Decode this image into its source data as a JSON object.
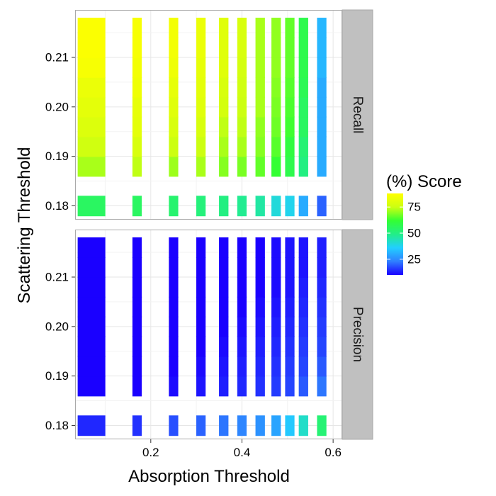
{
  "chart_data": {
    "type": "heatmap",
    "xlabel": "Absorption Threshold",
    "ylabel": "Scattering Threshold",
    "x_ticks": [
      "0.2",
      "0.4",
      "0.6"
    ],
    "y_ticks": [
      "0.18",
      "0.19",
      "0.20",
      "0.21"
    ],
    "xlim": [
      0.034,
      0.62
    ],
    "ylim": [
      0.1772,
      0.2196
    ],
    "x_values": [
      0.07,
      0.17,
      0.25,
      0.31,
      0.36,
      0.4,
      0.44,
      0.475,
      0.505,
      0.535,
      0.575
    ],
    "x_widths": [
      0.06,
      0.02,
      0.02,
      0.02,
      0.02,
      0.02,
      0.02,
      0.02,
      0.02,
      0.02,
      0.02
    ],
    "y_values": [
      0.18,
      0.188,
      0.192,
      0.196,
      0.2,
      0.204,
      0.208,
      0.212,
      0.216
    ],
    "y_heights": [
      0.004,
      0.004,
      0.004,
      0.004,
      0.004,
      0.004,
      0.004,
      0.004,
      0.004
    ],
    "grid": true,
    "legend": {
      "title": "(%) Score",
      "ticks": [
        "25",
        "50",
        "75"
      ],
      "tick_values": [
        25,
        50,
        75
      ],
      "min": 10,
      "max": 88,
      "placement": "right",
      "colors": [
        "#1a00ff",
        "#2f80ff",
        "#22cfff",
        "#22ee88",
        "#33ff33",
        "#ccff11",
        "#ffff00"
      ]
    },
    "facets": [
      {
        "strip": "Recall",
        "values": [
          [
            55,
            55,
            53,
            51,
            50,
            48,
            46,
            40,
            38,
            30,
            20
          ],
          [
            72,
            74,
            71,
            72,
            69,
            68,
            66,
            62,
            58,
            50,
            30
          ],
          [
            76,
            78,
            75,
            75,
            72,
            72,
            69,
            65,
            60,
            52,
            30
          ],
          [
            79,
            81,
            78,
            78,
            74,
            74,
            70,
            67,
            63,
            55,
            30
          ],
          [
            81,
            82,
            80,
            80,
            77,
            75,
            72,
            68,
            64,
            55,
            30
          ],
          [
            83,
            84,
            82,
            81,
            78,
            76,
            72,
            69,
            65,
            57,
            30
          ],
          [
            86,
            85,
            84,
            82,
            80,
            77,
            72,
            70,
            66,
            58,
            32
          ],
          [
            87,
            86,
            85,
            83,
            80,
            78,
            72,
            70,
            66,
            58,
            32
          ],
          [
            87,
            86,
            85,
            83,
            80,
            78,
            72,
            70,
            66,
            58,
            32
          ]
        ]
      },
      {
        "strip": "Precision",
        "values": [
          [
            14,
            15,
            18,
            20,
            22,
            24,
            26,
            29,
            35,
            42,
            52
          ],
          [
            10,
            10,
            11,
            12,
            13,
            14,
            15,
            16,
            17,
            19,
            22
          ],
          [
            10,
            10,
            10,
            11,
            12,
            13,
            14,
            15,
            16,
            17,
            19
          ],
          [
            10,
            10,
            10,
            10,
            11,
            12,
            13,
            14,
            15,
            16,
            17
          ],
          [
            10,
            10,
            10,
            10,
            10,
            11,
            12,
            13,
            14,
            15,
            16
          ],
          [
            10,
            10,
            10,
            10,
            10,
            10,
            11,
            12,
            13,
            14,
            15
          ],
          [
            10,
            10,
            10,
            10,
            10,
            10,
            10,
            11,
            12,
            13,
            14
          ],
          [
            10,
            10,
            10,
            10,
            10,
            10,
            10,
            11,
            12,
            12,
            13
          ],
          [
            10,
            10,
            10,
            10,
            10,
            10,
            10,
            11,
            12,
            12,
            13
          ]
        ]
      }
    ]
  }
}
